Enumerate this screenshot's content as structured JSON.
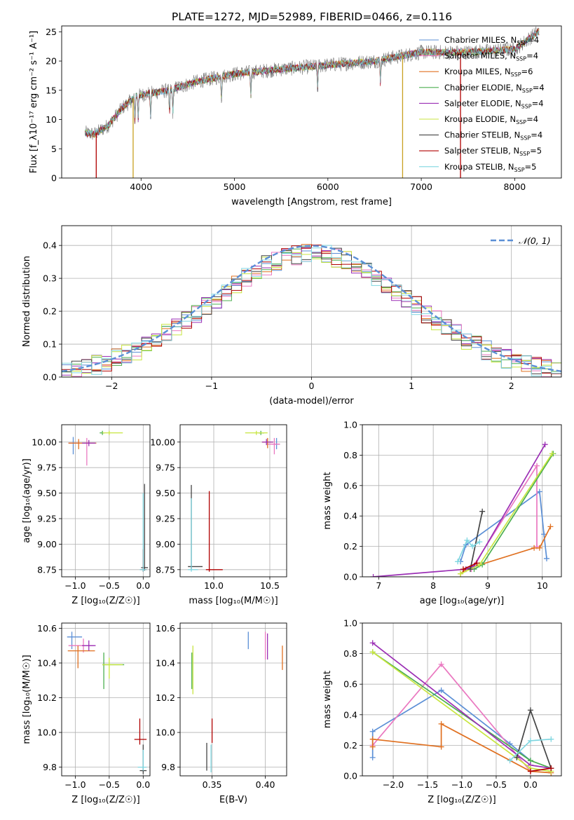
{
  "figure_title": "PLATE=1272, MJD=52989, FIBERID=0466, z=0.116",
  "colors": {
    "chabrier_miles": "#5b8fd6",
    "salpeter_miles": "#ea78c0",
    "kroupa_miles": "#e07020",
    "chabrier_elodie": "#4caf50",
    "salpeter_elodie": "#9b2fb5",
    "kroupa_elodie": "#c8e640",
    "chabrier_stelib": "#444444",
    "salpeter_stelib": "#b00000",
    "kroupa_stelib": "#7fd6e0",
    "grid": "#b0b0b0",
    "normal_curve": "#5b8fd6"
  },
  "chart_data": [
    {
      "id": "spectrum",
      "type": "line",
      "title": "PLATE=1272, MJD=52989, FIBERID=0466, z=0.116",
      "xlabel": "wavelength [Angstrom, rest frame]",
      "ylabel": "Flux [f_λ10⁻¹⁷ erg cm⁻² s⁻¹ A⁻¹]",
      "xlim": [
        3150,
        8500
      ],
      "ylim": [
        0,
        26
      ],
      "xticks": [
        "4000",
        "5000",
        "6000",
        "7000",
        "8000"
      ],
      "yticks": [
        "0",
        "5",
        "10",
        "15",
        "20",
        "25"
      ],
      "grid": false,
      "legend_position": "right",
      "series_names": [
        "Chabrier MILES, N_SSP=4",
        "Salpeter MILES, N_SSP=4",
        "Kroupa MILES, N_SSP=6",
        "Chabrier ELODIE, N_SSP=4",
        "Salpeter ELODIE, N_SSP=4",
        "Kroupa ELODIE, N_SSP=4",
        "Chabrier STELIB, N_SSP=4",
        "Salpeter STELIB, N_SSP=5",
        "Kroupa STELIB, N_SSP=5"
      ],
      "continuum_points": [
        [
          3400,
          7.7
        ],
        [
          3500,
          7.5
        ],
        [
          3650,
          9.0
        ],
        [
          3800,
          12.0
        ],
        [
          3950,
          14.0
        ],
        [
          4100,
          14.5
        ],
        [
          4300,
          15.0
        ],
        [
          4600,
          16.5
        ],
        [
          5000,
          17.8
        ],
        [
          5500,
          18.6
        ],
        [
          6000,
          19.3
        ],
        [
          6500,
          20.0
        ],
        [
          7000,
          21.5
        ],
        [
          7500,
          21.5
        ],
        [
          8000,
          22.0
        ],
        [
          8250,
          25.0
        ]
      ],
      "drop_lines": [
        3520,
        3915,
        6800,
        7420
      ]
    },
    {
      "id": "residual_hist",
      "type": "line",
      "xlabel": "(data-model)/error",
      "ylabel": "Normed distribution",
      "xlim": [
        -2.5,
        2.5
      ],
      "ylim": [
        0,
        0.46
      ],
      "xticks": [
        "−2",
        "−1",
        "0",
        "1",
        "2"
      ],
      "yticks": [
        "0.0",
        "0.1",
        "0.2",
        "0.3",
        "0.4"
      ],
      "grid": true,
      "legend_position": "top-right",
      "legend": "𝒩(0, 1)",
      "bin_width": 0.1
    },
    {
      "id": "age_vs_Z",
      "type": "scatter",
      "xlabel": "Z [log₁₀(Z/Z☉)]",
      "ylabel": "age  [log₁₀(age/yr)]",
      "xlim": [
        -1.2,
        0.1
      ],
      "ylim": [
        8.68,
        10.17
      ],
      "xticks": [
        "−1.0",
        "−0.5",
        "0.0"
      ],
      "yticks": [
        "8.75",
        "9.00",
        "9.25",
        "9.50",
        "9.75",
        "10.00"
      ],
      "grid": true,
      "points": [
        {
          "c": "chabrier_miles",
          "x": -1.03,
          "y": 9.99,
          "xerr": [
            0.07,
            0.08
          ],
          "yerr": [
            0.11,
            0.06
          ]
        },
        {
          "c": "salpeter_miles",
          "x": -0.83,
          "y": 9.99,
          "xerr": [
            0.27,
            0.13
          ],
          "yerr": [
            0.22,
            0.05
          ]
        },
        {
          "c": "kroupa_miles",
          "x": -0.95,
          "y": 9.99,
          "xerr": [
            0.15,
            0.26
          ],
          "yerr": [
            0.06,
            0.04
          ]
        },
        {
          "c": "chabrier_elodie",
          "x": -0.6,
          "y": 10.09,
          "xerr": [
            0.04,
            0.03
          ],
          "yerr": [
            0.02,
            0.02
          ]
        },
        {
          "c": "salpeter_elodie",
          "x": -0.8,
          "y": 9.99,
          "xerr": [
            0.1,
            0.1
          ],
          "yerr": [
            0.03,
            0.03
          ]
        },
        {
          "c": "kroupa_elodie",
          "x": -0.5,
          "y": 10.09,
          "xerr": [
            0.1,
            0.2
          ],
          "yerr": [
            0.02,
            0.02
          ]
        },
        {
          "c": "chabrier_stelib",
          "x": 0.02,
          "y": 8.77,
          "xerr": [
            0.05,
            0.05
          ],
          "yerr": [
            0.03,
            0.82
          ]
        },
        {
          "c": "salpeter_stelib",
          "x": 0.0,
          "y": 8.75,
          "xerr": [
            0.04,
            0.05
          ],
          "yerr": [
            0.02,
            0.2
          ]
        },
        {
          "c": "kroupa_stelib",
          "x": 0.0,
          "y": 8.75,
          "xerr": [
            0.05,
            0.05
          ],
          "yerr": [
            0.02,
            0.75
          ]
        }
      ]
    },
    {
      "id": "age_vs_mass",
      "type": "scatter",
      "xlabel": "mass [log₁₀(M/M☉)]",
      "ylabel": "",
      "xlim": [
        9.7,
        10.65
      ],
      "ylim": [
        8.68,
        10.17
      ],
      "xticks": [
        "10.0",
        "10.5"
      ],
      "yticks": [
        "8.75",
        "9.00",
        "9.25",
        "9.50",
        "9.75",
        "10.00"
      ],
      "grid": true,
      "points": [
        {
          "c": "chabrier_miles",
          "x": 10.56,
          "y": 9.98,
          "xerr": [
            0.04,
            0.03
          ],
          "yerr": [
            0.05,
            0.06
          ]
        },
        {
          "c": "salpeter_miles",
          "x": 10.54,
          "y": 9.98,
          "xerr": [
            0.06,
            0.05
          ],
          "yerr": [
            0.1,
            0.06
          ]
        },
        {
          "c": "kroupa_miles",
          "x": 10.48,
          "y": 10.0,
          "xerr": [
            0.05,
            0.05
          ],
          "yerr": [
            0.06,
            0.04
          ]
        },
        {
          "c": "chabrier_elodie",
          "x": 10.42,
          "y": 10.09,
          "xerr": [
            0.02,
            0.03
          ],
          "yerr": [
            0.02,
            0.02
          ]
        },
        {
          "c": "salpeter_elodie",
          "x": 10.47,
          "y": 10.0,
          "xerr": [
            0.04,
            0.06
          ],
          "yerr": [
            0.03,
            0.03
          ]
        },
        {
          "c": "kroupa_elodie",
          "x": 10.38,
          "y": 10.09,
          "xerr": [
            0.1,
            0.1
          ],
          "yerr": [
            0.02,
            0.02
          ]
        },
        {
          "c": "chabrier_stelib",
          "x": 9.8,
          "y": 8.78,
          "xerr": [
            0.03,
            0.1
          ],
          "yerr": [
            0.03,
            0.8
          ]
        },
        {
          "c": "salpeter_stelib",
          "x": 9.96,
          "y": 8.75,
          "xerr": [
            0.03,
            0.12
          ],
          "yerr": [
            0.02,
            0.77
          ]
        },
        {
          "c": "kroupa_stelib",
          "x": 9.8,
          "y": 8.75,
          "xerr": [
            0.03,
            0.06
          ],
          "yerr": [
            0.02,
            0.7
          ]
        }
      ]
    },
    {
      "id": "weight_vs_age",
      "type": "line",
      "xlabel": "age  [log₁₀(age/yr)]",
      "ylabel": "mass weight",
      "xlim": [
        6.7,
        10.35
      ],
      "ylim": [
        0,
        1.0
      ],
      "xticks": [
        "7",
        "8",
        "9",
        "10"
      ],
      "yticks": [
        "0.0",
        "0.2",
        "0.4",
        "0.6",
        "0.8",
        "1.0"
      ],
      "grid": true,
      "series": [
        {
          "c": "chabrier_miles",
          "pts": [
            [
              8.5,
              0.1
            ],
            [
              8.6,
              0.21
            ],
            [
              9.95,
              0.56
            ],
            [
              10.03,
              0.28
            ],
            [
              10.08,
              0.12
            ]
          ]
        },
        {
          "c": "salpeter_miles",
          "pts": [
            [
              8.7,
              0.05
            ],
            [
              9.9,
              0.73
            ],
            [
              9.9,
              0.2
            ]
          ]
        },
        {
          "c": "kroupa_miles",
          "pts": [
            [
              8.5,
              0.02
            ],
            [
              8.6,
              0.05
            ],
            [
              9.85,
              0.19
            ],
            [
              9.95,
              0.19
            ],
            [
              10.15,
              0.33
            ]
          ]
        },
        {
          "c": "chabrier_elodie",
          "pts": [
            [
              8.75,
              0.05
            ],
            [
              8.9,
              0.08
            ],
            [
              10.2,
              0.81
            ]
          ]
        },
        {
          "c": "salpeter_elodie",
          "pts": [
            [
              6.9,
              0.0
            ],
            [
              8.6,
              0.05
            ],
            [
              8.75,
              0.07
            ],
            [
              10.05,
              0.87
            ]
          ]
        },
        {
          "c": "kroupa_elodie",
          "pts": [
            [
              8.5,
              0.02
            ],
            [
              8.85,
              0.08
            ],
            [
              10.18,
              0.81
            ]
          ]
        },
        {
          "c": "chabrier_stelib",
          "pts": [
            [
              8.68,
              0.05
            ],
            [
              8.9,
              0.43
            ]
          ]
        },
        {
          "c": "salpeter_stelib",
          "pts": [
            [
              8.55,
              0.05
            ],
            [
              8.8,
              0.09
            ]
          ]
        },
        {
          "c": "kroupa_stelib",
          "pts": [
            [
              8.45,
              0.1
            ],
            [
              8.62,
              0.24
            ],
            [
              8.72,
              0.2
            ],
            [
              8.85,
              0.23
            ]
          ]
        }
      ]
    },
    {
      "id": "mass_vs_Z",
      "type": "scatter",
      "xlabel": "Z [log₁₀(Z/Z☉)]",
      "ylabel": "mass [log₁₀(M/M☉)]",
      "xlim": [
        -1.2,
        0.1
      ],
      "ylim": [
        9.75,
        10.63
      ],
      "xticks": [
        "−1.0",
        "−0.5",
        "0.0"
      ],
      "yticks": [
        "9.8",
        "10.0",
        "10.2",
        "10.4",
        "10.6"
      ],
      "grid": true,
      "points": [
        {
          "c": "chabrier_miles",
          "x": -1.05,
          "y": 10.55,
          "xerr": [
            0.07,
            0.15
          ],
          "yerr": [
            0.07,
            0.03
          ]
        },
        {
          "c": "salpeter_miles",
          "x": -0.88,
          "y": 10.5,
          "xerr": [
            0.22,
            0.15
          ],
          "yerr": [
            0.04,
            0.04
          ]
        },
        {
          "c": "kroupa_miles",
          "x": -0.96,
          "y": 10.47,
          "xerr": [
            0.15,
            0.25
          ],
          "yerr": [
            0.1,
            0.03
          ]
        },
        {
          "c": "chabrier_elodie",
          "x": -0.58,
          "y": 10.39,
          "xerr": [
            0.02,
            0.3
          ],
          "yerr": [
            0.14,
            0.07
          ]
        },
        {
          "c": "salpeter_elodie",
          "x": -0.8,
          "y": 10.5,
          "xerr": [
            0.1,
            0.1
          ],
          "yerr": [
            0.03,
            0.03
          ]
        },
        {
          "c": "kroupa_elodie",
          "x": -0.5,
          "y": 10.39,
          "xerr": [
            0.1,
            0.2
          ],
          "yerr": [
            0.08,
            0.04
          ]
        },
        {
          "c": "chabrier_stelib",
          "x": 0.0,
          "y": 9.78,
          "xerr": [
            0.05,
            0.05
          ],
          "yerr": [
            0.02,
            0.15
          ]
        },
        {
          "c": "salpeter_stelib",
          "x": -0.05,
          "y": 9.96,
          "xerr": [
            0.08,
            0.1
          ],
          "yerr": [
            0.03,
            0.12
          ]
        },
        {
          "c": "kroupa_stelib",
          "x": 0.0,
          "y": 9.8,
          "xerr": [
            0.08,
            0.05
          ],
          "yerr": [
            0.02,
            0.1
          ]
        }
      ]
    },
    {
      "id": "mass_vs_ebv",
      "type": "scatter",
      "xlabel": "E(B-V)",
      "ylabel": "",
      "xlim": [
        0.32,
        0.42
      ],
      "ylim": [
        9.75,
        10.63
      ],
      "xticks": [
        "0.35",
        "0.40"
      ],
      "yticks": [
        "9.8",
        "10.0",
        "10.2",
        "10.4",
        "10.6"
      ],
      "grid": true,
      "points": [
        {
          "c": "chabrier_miles",
          "x": 0.384,
          "y": 10.53,
          "xerr": [
            0,
            0
          ],
          "yerr": [
            0.05,
            0.05
          ]
        },
        {
          "c": "salpeter_miles",
          "x": 0.4,
          "y": 10.5,
          "xerr": [
            0,
            0
          ],
          "yerr": [
            0.08,
            0.08
          ]
        },
        {
          "c": "kroupa_miles",
          "x": 0.416,
          "y": 10.43,
          "xerr": [
            0,
            0
          ],
          "yerr": [
            0.07,
            0.07
          ]
        },
        {
          "c": "salpeter_elodie",
          "x": 0.402,
          "y": 10.5,
          "xerr": [
            0,
            0
          ],
          "yerr": [
            0.08,
            0.07
          ]
        },
        {
          "c": "chabrier_elodie",
          "x": 0.331,
          "y": 10.38,
          "xerr": [
            0,
            0
          ],
          "yerr": [
            0.13,
            0.08
          ]
        },
        {
          "c": "kroupa_elodie",
          "x": 0.332,
          "y": 10.37,
          "xerr": [
            0,
            0
          ],
          "yerr": [
            0.15,
            0.13
          ]
        },
        {
          "c": "chabrier_stelib",
          "x": 0.345,
          "y": 9.86,
          "xerr": [
            0,
            0
          ],
          "yerr": [
            0.08,
            0.08
          ]
        },
        {
          "c": "salpeter_stelib",
          "x": 0.35,
          "y": 10.01,
          "xerr": [
            0,
            0
          ],
          "yerr": [
            0.07,
            0.07
          ]
        },
        {
          "c": "kroupa_stelib",
          "x": 0.349,
          "y": 9.85,
          "xerr": [
            0,
            0
          ],
          "yerr": [
            0.08,
            0.08
          ]
        }
      ]
    },
    {
      "id": "weight_vs_Z",
      "type": "line",
      "xlabel": "Z [log₁₀(Z/Z☉)]",
      "ylabel": "mass weight",
      "xlim": [
        -2.45,
        0.45
      ],
      "ylim": [
        0,
        1.0
      ],
      "xticks": [
        "−2.0",
        "−1.5",
        "−1.0",
        "−0.5",
        "0.0"
      ],
      "yticks": [
        "0.0",
        "0.2",
        "0.4",
        "0.6",
        "0.8",
        "1.0"
      ],
      "grid": true,
      "series": [
        {
          "c": "chabrier_miles",
          "pts": [
            [
              -2.3,
              0.12
            ],
            [
              -2.3,
              0.29
            ],
            [
              -1.3,
              0.56
            ],
            [
              -0.3,
              0.21
            ],
            [
              0.0,
              0.1
            ]
          ]
        },
        {
          "c": "salpeter_miles",
          "pts": [
            [
              -2.3,
              0.2
            ],
            [
              -1.3,
              0.73
            ],
            [
              0.0,
              0.03
            ]
          ]
        },
        {
          "c": "kroupa_miles",
          "pts": [
            [
              -2.3,
              0.19
            ],
            [
              -2.3,
              0.24
            ],
            [
              -1.3,
              0.19
            ],
            [
              -1.3,
              0.34
            ],
            [
              0.0,
              0.03
            ],
            [
              0.3,
              0.02
            ]
          ]
        },
        {
          "c": "chabrier_elodie",
          "pts": [
            [
              -2.3,
              0.81
            ],
            [
              0.0,
              0.1
            ],
            [
              0.3,
              0.05
            ]
          ]
        },
        {
          "c": "salpeter_elodie",
          "pts": [
            [
              -2.3,
              0.87
            ],
            [
              0.0,
              0.07
            ],
            [
              0.3,
              0.05
            ]
          ]
        },
        {
          "c": "kroupa_elodie",
          "pts": [
            [
              -2.3,
              0.81
            ],
            [
              0.0,
              0.05
            ],
            [
              0.3,
              0.03
            ]
          ]
        },
        {
          "c": "chabrier_stelib",
          "pts": [
            [
              -0.2,
              0.12
            ],
            [
              0.0,
              0.43
            ],
            [
              0.3,
              0.05
            ]
          ]
        },
        {
          "c": "salpeter_stelib",
          "pts": [
            [
              0.0,
              0.03
            ],
            [
              0.3,
              0.05
            ]
          ]
        },
        {
          "c": "kroupa_stelib",
          "pts": [
            [
              -0.3,
              0.1
            ],
            [
              0.0,
              0.23
            ],
            [
              0.3,
              0.24
            ]
          ]
        }
      ]
    }
  ]
}
